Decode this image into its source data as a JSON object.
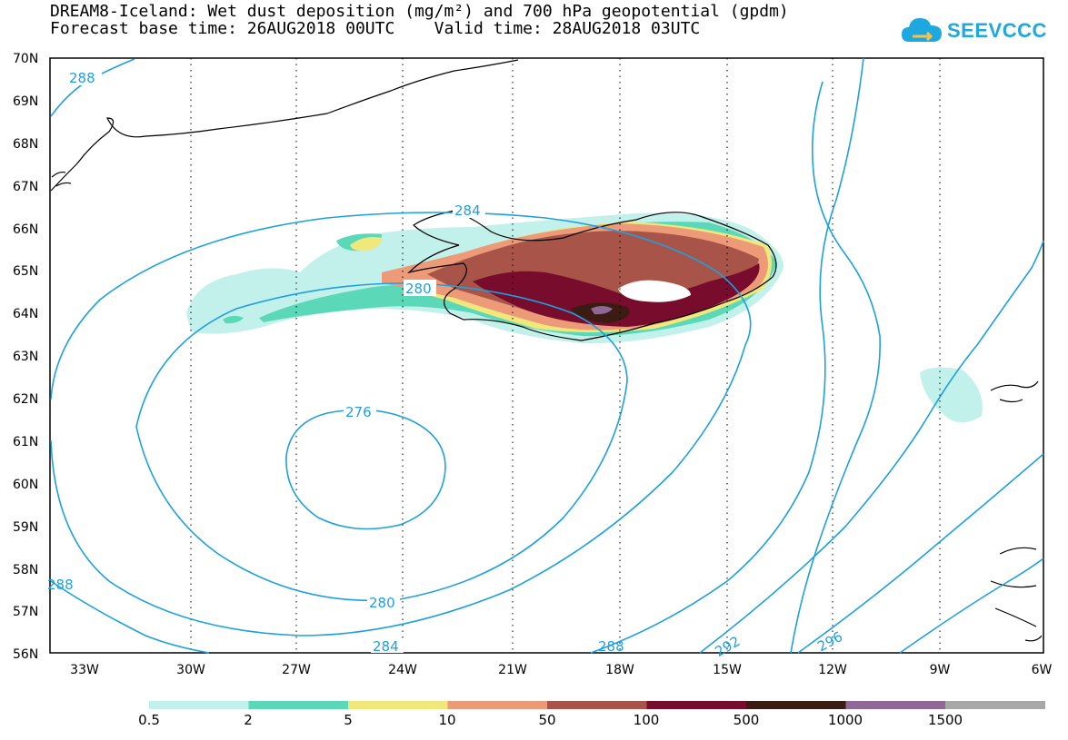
{
  "header": {
    "title_line1": "DREAM8-Iceland: Wet dust deposition (mg/m²) and 700 hPa geopotential (gpdm)",
    "title_line2": "Forecast base time: 26AUG2018 00UTC    Valid time: 28AUG2018 03UTC"
  },
  "logo": {
    "text": "SEEVCCC",
    "icon": "cloud-icon",
    "color": "#1ea8e0"
  },
  "map": {
    "lat_labels": [
      "70N",
      "69N",
      "68N",
      "67N",
      "66N",
      "65N",
      "64N",
      "63N",
      "62N",
      "61N",
      "60N",
      "59N",
      "58N",
      "57N",
      "56N"
    ],
    "lon_labels": [
      "33W",
      "30W",
      "27W",
      "24W",
      "21W",
      "18W",
      "15W",
      "12W",
      "9W",
      "6W"
    ],
    "contour_color": "#1ea0e0",
    "contour_labels": [
      "288",
      "284",
      "280",
      "276",
      "280",
      "284",
      "288",
      "292",
      "296",
      "288"
    ]
  },
  "colorbar": {
    "colors": [
      "#c2f0ea",
      "#5ad8b8",
      "#f0e87a",
      "#ec9a78",
      "#a85448",
      "#780c2c",
      "#3a1c12",
      "#906898",
      "#a8a8a8"
    ],
    "labels": [
      "0.5",
      "2",
      "5",
      "10",
      "50",
      "100",
      "500",
      "1000",
      "1500"
    ]
  }
}
